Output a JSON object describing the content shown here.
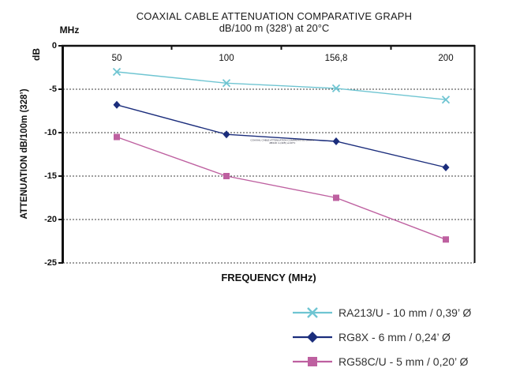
{
  "title": "COAXIAL CABLE ATTENUATION COMPARATIVE GRAPH",
  "subtitle": "dB/100 m (328’) at 20°C",
  "labels": {
    "x_unit": "MHz",
    "y_unit": "dB",
    "y_axis_title": "ATTENUATION dB/100m (328’)",
    "x_axis_title": "FREQUENCY (MHz)"
  },
  "annotation": {
    "line1": "COAXIAL CABLE ATTENUATION COMPARATIVE GRAPH",
    "line2": "dB/100 m (328’) at 20°C"
  },
  "chart_data": {
    "type": "line",
    "title": "COAXIAL CABLE ATTENUATION COMPARATIVE GRAPH dB/100 m (328') at 20°C",
    "xlabel": "FREQUENCY (MHz)",
    "ylabel": "ATTENUATION dB/100m (328')",
    "categories": [
      "50",
      "100",
      "156,8",
      "200"
    ],
    "x_values_mhz": [
      50,
      100,
      156.8,
      200
    ],
    "series": [
      {
        "name": "RA213/U - 10 mm / 0,39’ Ø",
        "marker": "x",
        "color": "#6FC5D2",
        "values": [
          -3.0,
          -4.3,
          -4.9,
          -6.2
        ]
      },
      {
        "name": "RG8X - 6 mm / 0,24’ Ø",
        "marker": "diamond",
        "color": "#1B2D7C",
        "values": [
          -6.8,
          -10.2,
          -11.0,
          -14.0
        ]
      },
      {
        "name": "RG58C/U - 5 mm / 0,20’ Ø",
        "marker": "square",
        "color": "#BE60A0",
        "values": [
          -10.5,
          -15.0,
          -17.5,
          -22.3
        ]
      }
    ],
    "y_ticks": [
      0,
      -5,
      -10,
      -15,
      -20,
      -25
    ],
    "y_tick_labels": [
      "0",
      "-5",
      "-10",
      "-15",
      "-20",
      "-25"
    ],
    "ylim": [
      -25,
      0
    ],
    "grid": "horizontal-dashed",
    "axis_color": "#111111",
    "gridline_color": "#3c3c3c",
    "legend_position": "bottom-right"
  }
}
